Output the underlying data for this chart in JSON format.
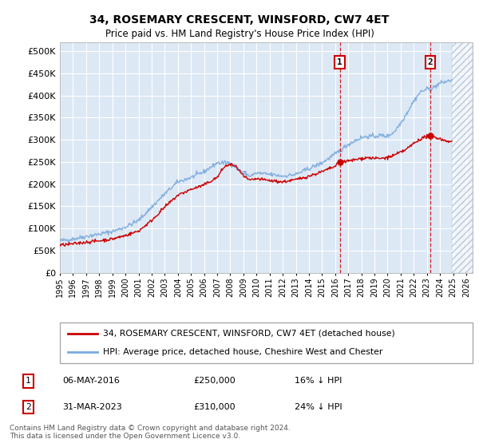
{
  "title": "34, ROSEMARY CRESCENT, WINSFORD, CW7 4ET",
  "subtitle": "Price paid vs. HM Land Registry's House Price Index (HPI)",
  "ylabel_ticks": [
    0,
    50000,
    100000,
    150000,
    200000,
    250000,
    300000,
    350000,
    400000,
    450000,
    500000
  ],
  "ylim": [
    0,
    520000
  ],
  "xlim_start": 1995.0,
  "xlim_end": 2026.5,
  "xtick_years": [
    1995,
    1996,
    1997,
    1998,
    1999,
    2000,
    2001,
    2002,
    2003,
    2004,
    2005,
    2006,
    2007,
    2008,
    2009,
    2010,
    2011,
    2012,
    2013,
    2014,
    2015,
    2016,
    2017,
    2018,
    2019,
    2020,
    2021,
    2022,
    2023,
    2024,
    2025,
    2026
  ],
  "sale1_x": 2016.35,
  "sale1_y": 250000,
  "sale2_x": 2023.25,
  "sale2_y": 310000,
  "sale1_label": "06-MAY-2016",
  "sale1_price": "£250,000",
  "sale1_hpi": "16% ↓ HPI",
  "sale2_label": "31-MAR-2023",
  "sale2_price": "£310,000",
  "sale2_hpi": "24% ↓ HPI",
  "legend_line1": "34, ROSEMARY CRESCENT, WINSFORD, CW7 4ET (detached house)",
  "legend_line2": "HPI: Average price, detached house, Cheshire West and Chester",
  "footer": "Contains HM Land Registry data © Crown copyright and database right 2024.\nThis data is licensed under the Open Government Licence v3.0.",
  "red_color": "#cc0000",
  "blue_color": "#7aaadd",
  "bg_color": "#dde8f5",
  "hatch_color": "#b8c8dc"
}
